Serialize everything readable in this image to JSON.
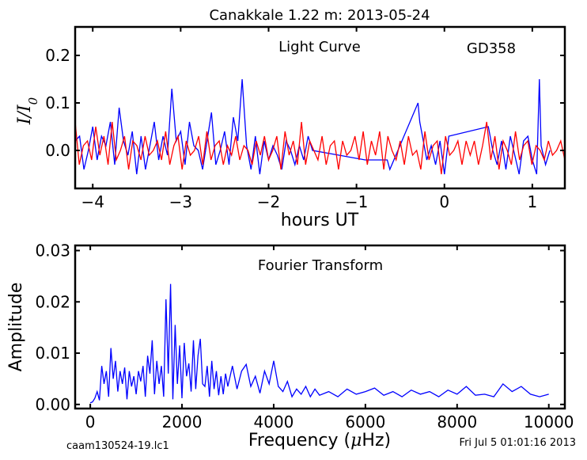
{
  "title": "Canakkale 1.22 m:  2013-05-24",
  "footer_left": "caam130524-19.lc1",
  "footer_right": "Fri Jul  5 01:01:16 2013",
  "chart_data": [
    {
      "type": "line",
      "panel": "top",
      "xlabel": "hours UT",
      "ylabel": "I/I",
      "ylabel_sub": "0",
      "xlim": [
        -4.2,
        1.37
      ],
      "ylim": [
        -0.08,
        0.26
      ],
      "xticks": [
        -4,
        -3,
        -2,
        -1,
        0,
        1
      ],
      "xtick_labels": [
        "−4",
        "−3",
        "−2",
        "−1",
        "0",
        "1"
      ],
      "yticks": [
        0.0,
        0.1,
        0.2
      ],
      "ytick_labels": [
        "0.0",
        "0.1",
        "0.2"
      ],
      "annotations": [
        "Light Curve",
        "GD358"
      ],
      "series": [
        {
          "color": "#0000ff",
          "x": [
            -4.2,
            -4.15,
            -4.1,
            -4.05,
            -4.0,
            -3.95,
            -3.9,
            -3.85,
            -3.8,
            -3.75,
            -3.7,
            -3.65,
            -3.6,
            -3.55,
            -3.5,
            -3.45,
            -3.4,
            -3.35,
            -3.3,
            -3.25,
            -3.2,
            -3.15,
            -3.1,
            -3.05,
            -3.0,
            -2.95,
            -2.9,
            -2.85,
            -2.8,
            -2.75,
            -2.7,
            -2.65,
            -2.6,
            -2.55,
            -2.5,
            -2.45,
            -2.4,
            -2.35,
            -2.3,
            -2.25,
            -2.2,
            -2.15,
            -2.1,
            -2.05,
            -2.0,
            -1.95,
            -1.9,
            -1.85,
            -1.8,
            -1.75,
            -1.7,
            -1.65,
            -1.6,
            -1.55,
            -1.5,
            -1.2,
            -0.9,
            -0.65,
            -0.62,
            -0.3,
            -0.28,
            -0.25,
            -0.2,
            -0.15,
            -0.1,
            -0.05,
            0.0,
            0.05,
            0.5,
            0.55,
            0.6,
            0.65,
            0.7,
            0.75,
            0.8,
            0.85,
            0.9,
            0.95,
            1.0,
            1.05,
            1.08,
            1.1,
            1.15,
            1.2
          ],
          "y": [
            0.02,
            0.03,
            -0.04,
            0.0,
            0.05,
            -0.02,
            0.03,
            0.01,
            0.06,
            -0.03,
            0.09,
            0.02,
            -0.01,
            0.04,
            -0.05,
            0.03,
            -0.04,
            0.01,
            0.06,
            -0.02,
            0.03,
            -0.01,
            0.13,
            0.02,
            0.04,
            -0.03,
            0.06,
            0.01,
            0.0,
            -0.04,
            0.02,
            0.08,
            -0.03,
            0.0,
            0.04,
            -0.03,
            0.07,
            0.02,
            0.15,
            0.01,
            -0.04,
            0.03,
            -0.05,
            0.02,
            -0.02,
            0.01,
            -0.01,
            -0.04,
            0.02,
            0.0,
            -0.03,
            0.01,
            -0.02,
            0.03,
            0.0,
            -0.01,
            -0.02,
            -0.02,
            -0.04,
            0.1,
            0.06,
            0.03,
            -0.02,
            0.01,
            -0.03,
            0.02,
            -0.05,
            0.03,
            0.05,
            0.0,
            -0.03,
            0.02,
            -0.04,
            0.03,
            -0.01,
            -0.05,
            0.02,
            0.03,
            -0.02,
            -0.05,
            0.15,
            0.01,
            -0.03,
            0.0
          ]
        },
        {
          "color": "#ff0000",
          "x_range": [
            -4.2,
            1.37
          ],
          "y": [
            0.06,
            -0.03,
            0.01,
            0.02,
            -0.02,
            0.05,
            -0.01,
            0.03,
            -0.03,
            0.06,
            -0.02,
            0.0,
            0.03,
            -0.04,
            0.02,
            0.01,
            -0.02,
            0.03,
            -0.01,
            0.0,
            0.02,
            -0.02,
            0.04,
            -0.03,
            0.01,
            0.03,
            -0.04,
            0.02,
            -0.01,
            0.0,
            0.03,
            -0.03,
            0.04,
            -0.02,
            0.01,
            0.02,
            -0.03,
            0.01,
            -0.01,
            0.03,
            -0.02,
            0.01,
            0.0,
            -0.03,
            0.02,
            -0.01,
            0.03,
            -0.02,
            0.0,
            0.03,
            -0.04,
            0.04,
            -0.01,
            0.02,
            -0.03,
            0.06,
            -0.03,
            0.02,
            0.0,
            -0.02,
            0.03,
            -0.03,
            0.01,
            0.02,
            -0.04,
            0.02,
            -0.01,
            0.0,
            0.03,
            -0.02,
            0.04,
            -0.03,
            0.02,
            -0.01,
            0.04,
            -0.04,
            0.03,
            0.0,
            -0.02,
            0.02,
            -0.03,
            0.03,
            -0.01,
            0.0,
            -0.04,
            0.04,
            -0.02,
            0.01,
            0.02,
            -0.05,
            0.03,
            -0.01,
            0.0,
            0.02,
            -0.03,
            0.02,
            -0.01,
            0.02,
            -0.03,
            0.01,
            0.06,
            -0.02,
            0.03,
            -0.04,
            0.02,
            0.0,
            -0.03,
            0.04,
            -0.02,
            0.01,
            0.02,
            -0.03,
            0.01,
            0.0,
            -0.02,
            0.02,
            -0.01,
            0.0,
            0.02,
            -0.02
          ]
        }
      ]
    },
    {
      "type": "line",
      "panel": "bottom",
      "title": "Fourier Transform",
      "xlabel": "Frequency (",
      "xlabel_mu": "μ",
      "xlabel_end": "Hz)",
      "ylabel": "Amplitude",
      "xlim": [
        -330,
        10350
      ],
      "ylim": [
        -0.0008,
        0.031
      ],
      "xticks": [
        0,
        2000,
        4000,
        6000,
        8000,
        10000
      ],
      "xtick_labels": [
        "0",
        "2000",
        "4000",
        "6000",
        "8000",
        "10000"
      ],
      "yticks": [
        0.0,
        0.01,
        0.02,
        0.03
      ],
      "ytick_labels": [
        "0.00",
        "0.01",
        "0.02",
        "0.03"
      ],
      "series": [
        {
          "color": "#0000ff",
          "x": [
            0,
            50,
            100,
            150,
            200,
            250,
            300,
            350,
            400,
            450,
            500,
            550,
            600,
            650,
            700,
            750,
            800,
            850,
            900,
            950,
            1000,
            1050,
            1100,
            1150,
            1200,
            1250,
            1300,
            1350,
            1400,
            1450,
            1500,
            1550,
            1600,
            1650,
            1700,
            1750,
            1800,
            1850,
            1900,
            1950,
            2000,
            2050,
            2100,
            2150,
            2200,
            2250,
            2300,
            2350,
            2400,
            2450,
            2500,
            2550,
            2600,
            2650,
            2700,
            2750,
            2800,
            2850,
            2900,
            2950,
            3000,
            3100,
            3200,
            3300,
            3400,
            3500,
            3600,
            3700,
            3800,
            3900,
            4000,
            4100,
            4200,
            4300,
            4400,
            4500,
            4600,
            4700,
            4800,
            4900,
            5000,
            5200,
            5400,
            5600,
            5800,
            6000,
            6200,
            6400,
            6600,
            6800,
            7000,
            7200,
            7400,
            7600,
            7800,
            8000,
            8200,
            8400,
            8600,
            8800,
            9000,
            9200,
            9400,
            9600,
            9800,
            10000
          ],
          "y": [
            0.0003,
            0.0005,
            0.0012,
            0.0025,
            0.0008,
            0.0075,
            0.004,
            0.0065,
            0.0015,
            0.011,
            0.005,
            0.0085,
            0.0025,
            0.0065,
            0.004,
            0.0072,
            0.001,
            0.0065,
            0.0035,
            0.0055,
            0.002,
            0.0065,
            0.0045,
            0.0075,
            0.0015,
            0.0095,
            0.006,
            0.0125,
            0.002,
            0.0085,
            0.004,
            0.0075,
            0.0015,
            0.0205,
            0.006,
            0.0235,
            0.001,
            0.0155,
            0.004,
            0.0115,
            0.0012,
            0.012,
            0.0055,
            0.008,
            0.0025,
            0.0125,
            0.003,
            0.0095,
            0.0128,
            0.004,
            0.0035,
            0.0075,
            0.0015,
            0.0085,
            0.003,
            0.0065,
            0.0018,
            0.0055,
            0.002,
            0.006,
            0.0035,
            0.0075,
            0.003,
            0.0065,
            0.0078,
            0.0035,
            0.0055,
            0.0022,
            0.0065,
            0.004,
            0.0085,
            0.0035,
            0.0025,
            0.0045,
            0.0015,
            0.003,
            0.002,
            0.0035,
            0.0015,
            0.003,
            0.0018,
            0.0025,
            0.0015,
            0.003,
            0.002,
            0.0025,
            0.0032,
            0.0018,
            0.0025,
            0.0015,
            0.0028,
            0.002,
            0.0025,
            0.0015,
            0.0028,
            0.002,
            0.0035,
            0.0018,
            0.002,
            0.0015,
            0.004,
            0.0025,
            0.0035,
            0.002,
            0.0015,
            0.002
          ]
        }
      ]
    }
  ]
}
